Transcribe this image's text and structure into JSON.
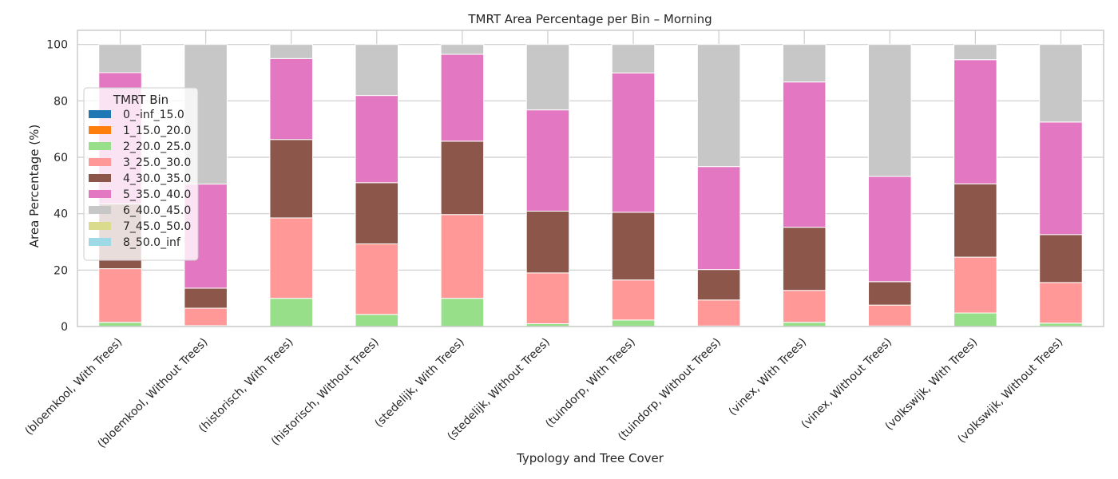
{
  "chart_data": {
    "type": "bar",
    "stacked": true,
    "title": "TMRT Area Percentage per Bin – Morning",
    "xlabel": "Typology and Tree Cover",
    "ylabel": "Area Percentage (%)",
    "ylim": [
      0,
      105
    ],
    "yticks": [
      0,
      20,
      40,
      60,
      80,
      100
    ],
    "grid": true,
    "legend": {
      "title": "TMRT Bin",
      "placement": "upper-left"
    },
    "categories": [
      "(bloemkool, With Trees)",
      "(bloemkool, Without Trees)",
      "(historisch, With Trees)",
      "(historisch, Without Trees)",
      "(stedelijk, With Trees)",
      "(stedelijk, Without Trees)",
      "(tuindorp, With Trees)",
      "(tuindorp, Without Trees)",
      "(vinex, With Trees)",
      "(vinex, Without Trees)",
      "(volkswijk, With Trees)",
      "(volkswijk, Without Trees)"
    ],
    "series": [
      {
        "name": "0_-inf_15.0",
        "color": "#1f77b4",
        "values": [
          0,
          0,
          0,
          0,
          0,
          0,
          0,
          0,
          0,
          0,
          0,
          0
        ]
      },
      {
        "name": "1_15.0_20.0",
        "color": "#ff7f0e",
        "values": [
          0,
          0,
          0,
          0,
          0,
          0,
          0,
          0,
          0,
          0,
          0,
          0
        ]
      },
      {
        "name": "2_20.0_25.0",
        "color": "#98df8a",
        "values": [
          1.5,
          0.3,
          10.0,
          4.3,
          10.0,
          1.0,
          2.3,
          0.2,
          1.5,
          0.2,
          4.8,
          1.2
        ]
      },
      {
        "name": "3_25.0_30.0",
        "color": "#ff9896",
        "values": [
          19.0,
          6.2,
          28.5,
          25.0,
          29.7,
          18.0,
          14.2,
          9.2,
          11.3,
          7.4,
          19.8,
          14.4
        ]
      },
      {
        "name": "4_30.0_35.0",
        "color": "#8c564b",
        "values": [
          23.0,
          7.1,
          27.8,
          21.7,
          26.0,
          21.9,
          24.0,
          10.8,
          22.4,
          8.3,
          26.0,
          17.0
        ]
      },
      {
        "name": "5_35.0_40.0",
        "color": "#e377c2",
        "values": [
          46.5,
          36.9,
          28.7,
          30.9,
          30.8,
          35.9,
          49.4,
          36.5,
          51.5,
          37.3,
          44.0,
          39.9
        ]
      },
      {
        "name": "6_40.0_45.0",
        "color": "#c7c7c7",
        "values": [
          10.0,
          49.5,
          5.0,
          18.1,
          3.5,
          23.2,
          10.1,
          43.3,
          13.3,
          46.8,
          5.4,
          27.5
        ]
      },
      {
        "name": "7_45.0_50.0",
        "color": "#dbdb8d",
        "values": [
          0,
          0,
          0,
          0,
          0,
          0,
          0,
          0,
          0,
          0,
          0,
          0
        ]
      },
      {
        "name": "8_50.0_inf",
        "color": "#9edae5",
        "values": [
          0,
          0,
          0,
          0,
          0,
          0,
          0,
          0,
          0,
          0,
          0,
          0
        ]
      }
    ]
  }
}
